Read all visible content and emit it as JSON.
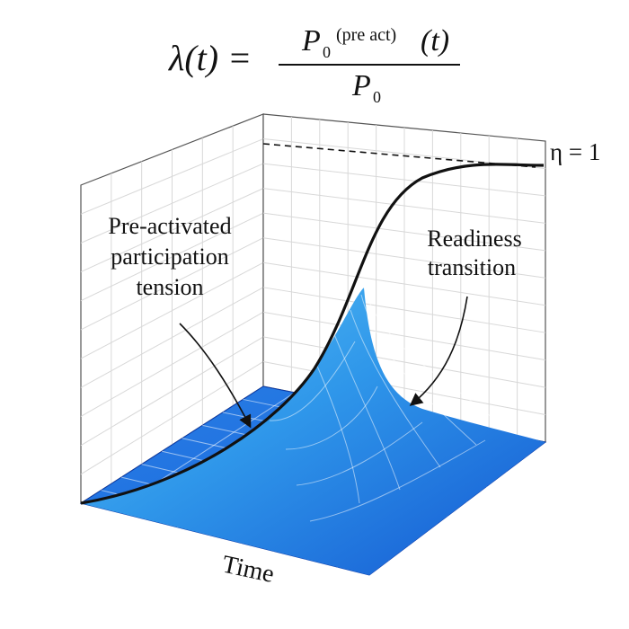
{
  "equation": {
    "lhs": "λ(t) =",
    "numerator_p": "P",
    "numerator_sub": "0",
    "numerator_sup": "(pre act)",
    "numerator_arg": "(t)",
    "denominator_p": "P",
    "denominator_sub": "0"
  },
  "labels": {
    "eta": "η = 1",
    "left_annotation": [
      "Pre-activated",
      "participation",
      "tension"
    ],
    "right_annotation": [
      "Readiness",
      "transition"
    ],
    "time_axis": "Time"
  },
  "colors": {
    "surface_light": "#49b6f2",
    "surface_mid": "#1f7ee0",
    "surface_dark": "#0d3fc4",
    "grid": "#d6d6d6",
    "curve": "#111111"
  }
}
